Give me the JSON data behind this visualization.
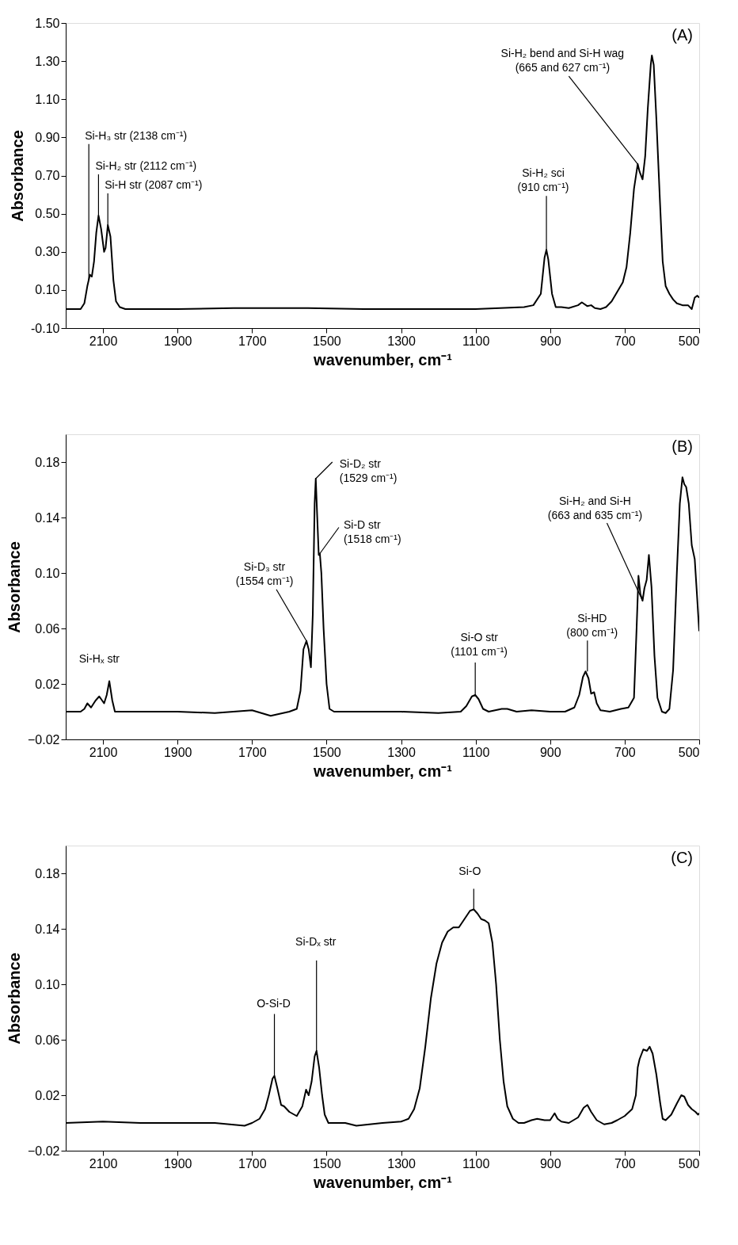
{
  "chart_data": [
    {
      "type": "line",
      "xlabel": "wavenumber, cm⁻¹",
      "ylabel": "Absorbance",
      "xlim": [
        2200,
        500
      ],
      "xticks": [
        2100,
        1900,
        1700,
        1500,
        1300,
        1100,
        900,
        700,
        500
      ],
      "ylim": [
        -0.1,
        1.5
      ],
      "yticks": [
        {
          "value": -0.1,
          "label": "-0.10"
        },
        {
          "value": 0.1,
          "label": "0.10"
        },
        {
          "value": 0.3,
          "label": "0.30"
        },
        {
          "value": 0.5,
          "label": "0.50"
        },
        {
          "value": 0.7,
          "label": "0.70"
        },
        {
          "value": 0.9,
          "label": "0.90"
        },
        {
          "value": 1.1,
          "label": "1.10"
        },
        {
          "value": 1.3,
          "label": "1.30"
        },
        {
          "value": 1.5,
          "label": "1.50"
        }
      ],
      "grid": false,
      "marker": "none",
      "line_style": "solid",
      "series": [
        {
          "color": "#000000",
          "x": [
            2200,
            2160,
            2150,
            2142,
            2135,
            2130,
            2124,
            2118,
            2112,
            2105,
            2097,
            2093,
            2087,
            2080,
            2072,
            2065,
            2055,
            2040,
            1900,
            1750,
            1550,
            1400,
            1250,
            1100,
            970,
            945,
            925,
            915,
            910,
            905,
            895,
            885,
            870,
            850,
            825,
            815,
            800,
            790,
            780,
            765,
            750,
            735,
            720,
            705,
            695,
            685,
            675,
            665,
            660,
            652,
            645,
            638,
            630,
            627,
            622,
            615,
            605,
            598,
            590,
            580,
            570,
            560,
            545,
            530,
            520,
            512,
            505,
            500
          ],
          "values": [
            0.0,
            0.0,
            0.03,
            0.12,
            0.18,
            0.17,
            0.25,
            0.4,
            0.49,
            0.42,
            0.3,
            0.32,
            0.44,
            0.38,
            0.15,
            0.04,
            0.01,
            0.0,
            0.0,
            0.005,
            0.005,
            0.0,
            0.0,
            0.0,
            0.01,
            0.02,
            0.08,
            0.27,
            0.31,
            0.26,
            0.08,
            0.01,
            0.01,
            0.005,
            0.02,
            0.035,
            0.015,
            0.02,
            0.005,
            0.0,
            0.01,
            0.04,
            0.09,
            0.14,
            0.22,
            0.4,
            0.63,
            0.76,
            0.72,
            0.68,
            0.8,
            1.05,
            1.28,
            1.33,
            1.28,
            1.0,
            0.55,
            0.25,
            0.12,
            0.08,
            0.05,
            0.03,
            0.02,
            0.02,
            0.0,
            0.06,
            0.07,
            0.06
          ]
        }
      ],
      "annotations": [
        "(A)",
        {
          "text": "Si-H₃ str (2138 cm⁻¹)",
          "x": 2138,
          "y": 0.15
        },
        {
          "text": "Si-H₂ str (2112 cm⁻¹)",
          "x": 2112,
          "y": 0.49
        },
        {
          "text": "Si-H str (2087 cm⁻¹)",
          "x": 2087,
          "y": 0.44
        },
        {
          "text": "Si-H₂ sci\n(910 cm⁻¹)",
          "x": 910,
          "y": 0.31
        },
        {
          "text": "Si-H₂ bend and Si-H wag\n(665 and 627 cm⁻¹)",
          "x": 665,
          "y": 0.76
        }
      ]
    },
    {
      "type": "line",
      "xlabel": "wavenumber, cm⁻¹",
      "ylabel": "Absorbance",
      "xlim": [
        2200,
        500
      ],
      "xticks": [
        2100,
        1900,
        1700,
        1500,
        1300,
        1100,
        900,
        700,
        500
      ],
      "ylim": [
        -0.02,
        0.2
      ],
      "yticks": [
        -0.02,
        0.02,
        0.06,
        {
          "value": 0.1,
          "label": "0.10"
        },
        0.14,
        0.18
      ],
      "grid": false,
      "marker": "none",
      "line_style": "solid",
      "series": [
        {
          "color": "#000000",
          "x": [
            2200,
            2160,
            2150,
            2142,
            2132,
            2120,
            2110,
            2097,
            2090,
            2083,
            2075,
            2068,
            2000,
            1900,
            1800,
            1700,
            1650,
            1600,
            1580,
            1570,
            1562,
            1554,
            1548,
            1542,
            1537,
            1532,
            1529,
            1525,
            1521,
            1518,
            1514,
            1508,
            1500,
            1492,
            1480,
            1400,
            1300,
            1200,
            1140,
            1125,
            1110,
            1101,
            1092,
            1080,
            1065,
            1030,
            1015,
            990,
            950,
            900,
            860,
            835,
            822,
            812,
            805,
            797,
            790,
            782,
            775,
            765,
            740,
            710,
            690,
            675,
            668,
            663,
            658,
            652,
            647,
            641,
            635,
            628,
            620,
            612,
            600,
            590,
            580,
            570,
            560,
            552,
            545,
            540,
            535,
            528,
            520,
            512,
            505,
            500
          ],
          "values": [
            0.0,
            0.0,
            0.002,
            0.006,
            0.003,
            0.008,
            0.011,
            0.006,
            0.012,
            0.022,
            0.008,
            0.0,
            0.0,
            0.0,
            -0.001,
            0.001,
            -0.003,
            0.0,
            0.002,
            0.015,
            0.045,
            0.051,
            0.045,
            0.032,
            0.07,
            0.15,
            0.168,
            0.14,
            0.113,
            0.114,
            0.1,
            0.06,
            0.02,
            0.002,
            0.0,
            0.0,
            0.0,
            -0.001,
            0.0,
            0.004,
            0.011,
            0.012,
            0.009,
            0.002,
            0.0,
            0.002,
            0.002,
            0.0,
            0.001,
            0.0,
            0.0,
            0.003,
            0.012,
            0.025,
            0.029,
            0.024,
            0.013,
            0.014,
            0.006,
            0.001,
            0.0,
            0.002,
            0.003,
            0.01,
            0.06,
            0.098,
            0.085,
            0.08,
            0.089,
            0.095,
            0.113,
            0.09,
            0.04,
            0.01,
            0.0,
            -0.001,
            0.002,
            0.03,
            0.1,
            0.15,
            0.169,
            0.164,
            0.162,
            0.15,
            0.12,
            0.11,
            0.08,
            0.058
          ]
        }
      ],
      "annotations": [
        "(B)",
        {
          "text": "Si-Hₓ str",
          "x": 2110,
          "y": 0.011
        },
        {
          "text": "Si-D₃ str\n(1554 cm⁻¹)",
          "x": 1554,
          "y": 0.051
        },
        {
          "text": "Si-D₂ str\n(1529 cm⁻¹)",
          "x": 1529,
          "y": 0.168
        },
        {
          "text": "Si-D str\n(1518 cm⁻¹)",
          "x": 1518,
          "y": 0.114
        },
        {
          "text": "Si-O str\n(1101 cm⁻¹)",
          "x": 1101,
          "y": 0.012
        },
        {
          "text": "Si-HD\n(800 cm⁻¹)",
          "x": 800,
          "y": 0.029
        },
        {
          "text": "Si-H₂ and Si-H\n(663 and 635 cm⁻¹)",
          "x": 652,
          "y": 0.08
        }
      ]
    },
    {
      "type": "line",
      "xlabel": "wavenumber, cm⁻¹",
      "ylabel": "Absorbance",
      "xlim": [
        2200,
        500
      ],
      "xticks": [
        2100,
        1900,
        1700,
        1500,
        1300,
        1100,
        900,
        700,
        500
      ],
      "ylim": [
        -0.02,
        0.2
      ],
      "yticks": [
        -0.02,
        0.02,
        0.06,
        {
          "value": 0.1,
          "label": "0.10"
        },
        0.14,
        0.18
      ],
      "grid": false,
      "marker": "none",
      "line_style": "solid",
      "series": [
        {
          "color": "#000000",
          "x": [
            2200,
            2100,
            2000,
            1900,
            1800,
            1720,
            1700,
            1680,
            1665,
            1655,
            1645,
            1640,
            1632,
            1622,
            1614,
            1600,
            1580,
            1565,
            1555,
            1548,
            1540,
            1532,
            1527,
            1520,
            1512,
            1505,
            1495,
            1450,
            1420,
            1350,
            1300,
            1280,
            1265,
            1250,
            1235,
            1220,
            1205,
            1190,
            1175,
            1160,
            1145,
            1130,
            1115,
            1105,
            1095,
            1085,
            1075,
            1065,
            1055,
            1045,
            1035,
            1025,
            1015,
            1000,
            985,
            970,
            950,
            935,
            915,
            900,
            888,
            880,
            870,
            850,
            825,
            810,
            800,
            790,
            775,
            755,
            735,
            720,
            700,
            680,
            670,
            665,
            660,
            650,
            640,
            633,
            625,
            615,
            605,
            598,
            590,
            575,
            560,
            548,
            540,
            530,
            520,
            510,
            503,
            500
          ],
          "values": [
            0.0,
            0.001,
            0.0,
            0.0,
            0.0,
            -0.002,
            0.0,
            0.003,
            0.01,
            0.02,
            0.032,
            0.034,
            0.025,
            0.013,
            0.012,
            0.008,
            0.005,
            0.012,
            0.024,
            0.02,
            0.03,
            0.048,
            0.052,
            0.04,
            0.02,
            0.006,
            0.0,
            0.0,
            -0.002,
            0.0,
            0.001,
            0.003,
            0.01,
            0.025,
            0.055,
            0.09,
            0.115,
            0.13,
            0.138,
            0.141,
            0.141,
            0.147,
            0.153,
            0.154,
            0.151,
            0.147,
            0.146,
            0.144,
            0.13,
            0.1,
            0.06,
            0.03,
            0.012,
            0.003,
            0.0,
            0.0,
            0.002,
            0.003,
            0.002,
            0.002,
            0.007,
            0.003,
            0.001,
            0.0,
            0.004,
            0.011,
            0.013,
            0.008,
            0.002,
            -0.001,
            0.0,
            0.002,
            0.005,
            0.01,
            0.02,
            0.04,
            0.046,
            0.053,
            0.052,
            0.055,
            0.05,
            0.035,
            0.015,
            0.003,
            0.002,
            0.006,
            0.014,
            0.02,
            0.019,
            0.013,
            0.01,
            0.008,
            0.006,
            0.007
          ]
        }
      ],
      "annotations": [
        "(C)",
        {
          "text": "O-Si-D",
          "x": 1640,
          "y": 0.034
        },
        {
          "text": "Si-Dₓ str",
          "x": 1527,
          "y": 0.052
        },
        {
          "text": "Si-O",
          "x": 1105,
          "y": 0.154
        }
      ]
    }
  ]
}
